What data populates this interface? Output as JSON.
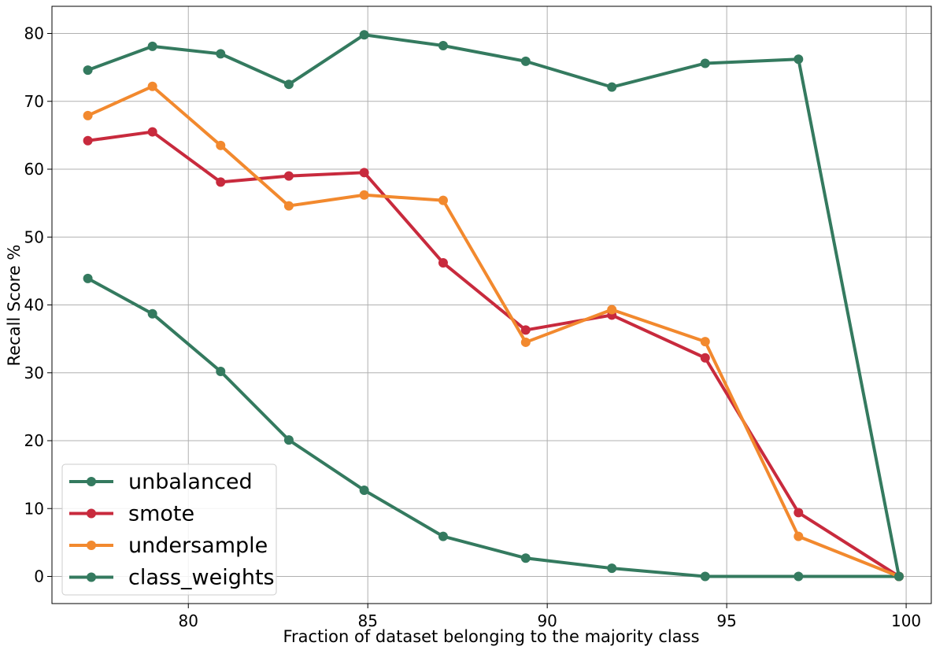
{
  "chart_data": {
    "type": "line",
    "title": "",
    "xlabel": "Fraction of dataset belonging to the majority class",
    "ylabel": "Recall Score %",
    "xlim": [
      76.2,
      100.7
    ],
    "ylim": [
      -4,
      84
    ],
    "x_ticks": [
      80,
      85,
      90,
      95,
      100
    ],
    "y_ticks": [
      0,
      10,
      20,
      30,
      40,
      50,
      60,
      70,
      80
    ],
    "grid": true,
    "legend_position": "lower-left",
    "x": [
      77.2,
      79.0,
      80.9,
      82.8,
      84.9,
      87.1,
      89.4,
      91.8,
      94.4,
      97.0,
      99.8
    ],
    "series": [
      {
        "name": "unbalanced",
        "color": "#347a5f",
        "values": [
          43.9,
          38.7,
          30.2,
          20.1,
          12.7,
          5.9,
          2.7,
          1.2,
          0.0,
          0.0,
          0.0
        ]
      },
      {
        "name": "smote",
        "color": "#c82a3d",
        "values": [
          64.2,
          65.5,
          58.1,
          59.0,
          59.5,
          46.2,
          36.3,
          38.5,
          32.2,
          9.4,
          0.0
        ]
      },
      {
        "name": "undersample",
        "color": "#f2892e",
        "values": [
          67.9,
          72.2,
          63.5,
          54.6,
          56.2,
          55.4,
          34.5,
          39.3,
          34.6,
          5.9,
          0.0
        ]
      },
      {
        "name": "class_weights",
        "color": "#347a5f",
        "values": [
          74.6,
          78.1,
          77.0,
          72.5,
          79.8,
          78.2,
          75.9,
          72.1,
          75.6,
          76.2,
          0.0
        ]
      }
    ]
  }
}
